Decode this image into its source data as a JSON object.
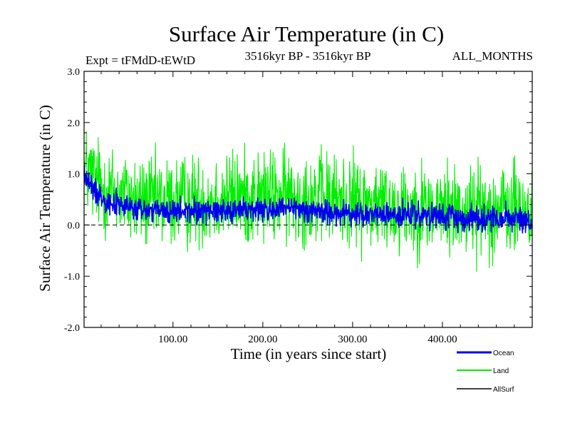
{
  "chart_data": {
    "type": "line",
    "title": "Surface Air Temperature (in C)",
    "subtitle_left": "Expt = tFMdD-tEWtD",
    "subtitle_center": "3516kyr BP - 3516kyr BP",
    "subtitle_right": "ALL_MONTHS",
    "xlabel": "Time (in years since start)",
    "ylabel": "Surface Air Temperature (in C)",
    "xlim": [
      1,
      500
    ],
    "ylim": [
      -2.0,
      3.0
    ],
    "x_ticks": [
      100,
      200,
      300,
      400
    ],
    "x_tick_labels": [
      "100.00",
      "200.00",
      "300.00",
      "400.00"
    ],
    "y_ticks": [
      -2,
      -1,
      0,
      1,
      2,
      3
    ],
    "y_tick_labels": [
      "-2.0",
      "-1.0",
      "0.0",
      "1.0",
      "2.0",
      "3.0"
    ],
    "zero_line": true,
    "legend_position": "bottom-right, outside plot",
    "series": [
      {
        "name": "Land",
        "color": "#00ee00",
        "mean": [
          [
            1,
            1.1
          ],
          [
            20,
            0.75
          ],
          [
            60,
            0.45
          ],
          [
            120,
            0.45
          ],
          [
            160,
            0.55
          ],
          [
            250,
            0.55
          ],
          [
            300,
            0.45
          ],
          [
            350,
            0.35
          ],
          [
            400,
            0.3
          ],
          [
            450,
            0.3
          ],
          [
            490,
            0.3
          ],
          [
            500,
            0.2
          ]
        ],
        "amplitude": 0.75
      },
      {
        "name": "Ocean",
        "color": "#0000ee",
        "mean": [
          [
            1,
            1.0
          ],
          [
            10,
            0.7
          ],
          [
            30,
            0.45
          ],
          [
            60,
            0.3
          ],
          [
            100,
            0.25
          ],
          [
            150,
            0.3
          ],
          [
            200,
            0.3
          ],
          [
            250,
            0.3
          ],
          [
            300,
            0.2
          ],
          [
            350,
            0.2
          ],
          [
            400,
            0.15
          ],
          [
            450,
            0.15
          ],
          [
            490,
            0.1
          ],
          [
            500,
            -0.05
          ]
        ],
        "amplitude": 0.2
      },
      {
        "name": "AllSurf",
        "color": "#000000",
        "mean": [],
        "amplitude": 0
      }
    ],
    "legend": [
      "Ocean",
      "Land",
      "AllSurf"
    ]
  }
}
